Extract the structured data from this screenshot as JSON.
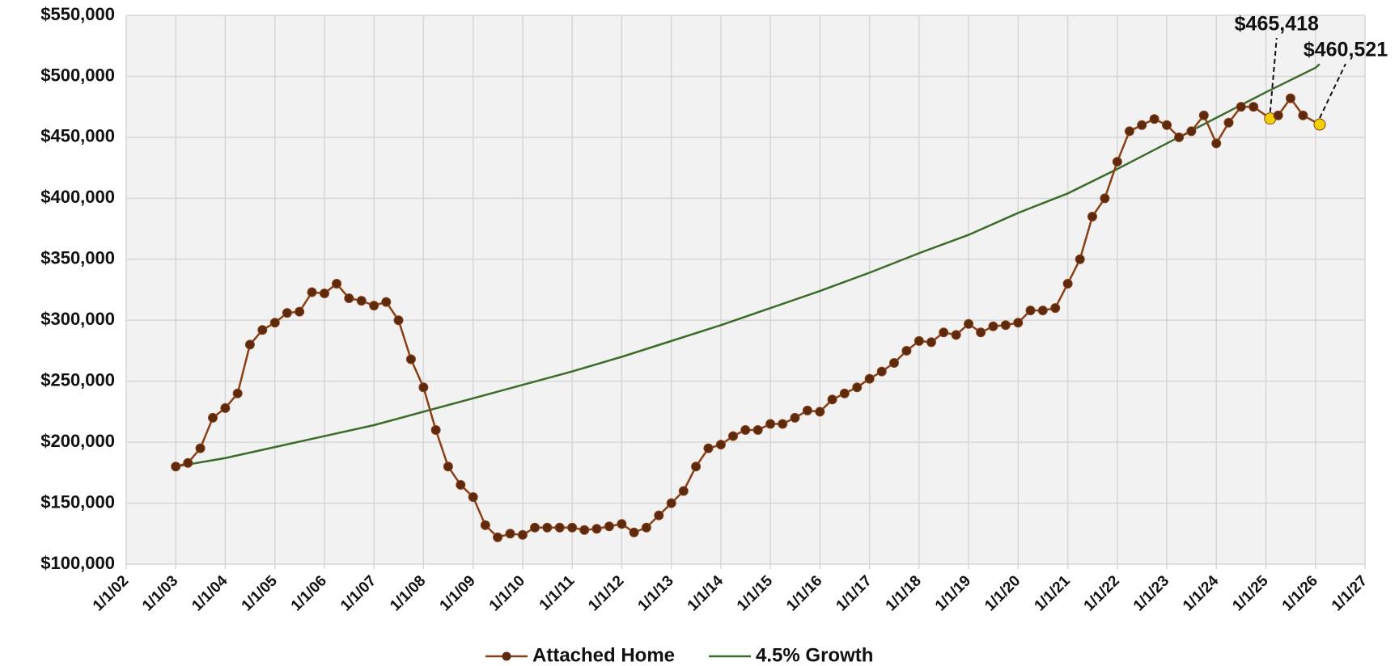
{
  "chart_data": {
    "type": "line",
    "xlim": [
      "2002-01-01",
      "2027-01-01"
    ],
    "xticks": [
      {
        "value": "2002-01-01",
        "label": "1/1/02"
      },
      {
        "value": "2003-01-01",
        "label": "1/1/03"
      },
      {
        "value": "2004-01-01",
        "label": "1/1/04"
      },
      {
        "value": "2005-01-01",
        "label": "1/1/05"
      },
      {
        "value": "2006-01-01",
        "label": "1/1/06"
      },
      {
        "value": "2007-01-01",
        "label": "1/1/07"
      },
      {
        "value": "2008-01-01",
        "label": "1/1/08"
      },
      {
        "value": "2009-01-01",
        "label": "1/1/09"
      },
      {
        "value": "2010-01-01",
        "label": "1/1/10"
      },
      {
        "value": "2011-01-01",
        "label": "1/1/11"
      },
      {
        "value": "2012-01-01",
        "label": "1/1/12"
      },
      {
        "value": "2013-01-01",
        "label": "1/1/13"
      },
      {
        "value": "2014-01-01",
        "label": "1/1/14"
      },
      {
        "value": "2015-01-01",
        "label": "1/1/15"
      },
      {
        "value": "2016-01-01",
        "label": "1/1/16"
      },
      {
        "value": "2017-01-01",
        "label": "1/1/17"
      },
      {
        "value": "2018-01-01",
        "label": "1/1/18"
      },
      {
        "value": "2019-01-01",
        "label": "1/1/19"
      },
      {
        "value": "2020-01-01",
        "label": "1/1/20"
      },
      {
        "value": "2021-01-01",
        "label": "1/1/21"
      },
      {
        "value": "2022-01-01",
        "label": "1/1/22"
      },
      {
        "value": "2023-01-01",
        "label": "1/1/23"
      },
      {
        "value": "2024-01-01",
        "label": "1/1/24"
      },
      {
        "value": "2025-01-01",
        "label": "1/1/25"
      },
      {
        "value": "2026-01-01",
        "label": "1/1/26"
      },
      {
        "value": "2027-01-01",
        "label": "1/1/27"
      }
    ],
    "ylim": [
      100000,
      550000
    ],
    "yticks": [
      {
        "value": 100000,
        "label": "$100,000"
      },
      {
        "value": 150000,
        "label": "$150,000"
      },
      {
        "value": 200000,
        "label": "$200,000"
      },
      {
        "value": 250000,
        "label": "$250,000"
      },
      {
        "value": 300000,
        "label": "$300,000"
      },
      {
        "value": 350000,
        "label": "$350,000"
      },
      {
        "value": 400000,
        "label": "$400,000"
      },
      {
        "value": 450000,
        "label": "$450,000"
      },
      {
        "value": 500000,
        "label": "$500,000"
      },
      {
        "value": 550000,
        "label": "$550,000"
      }
    ],
    "grid": true,
    "legend": "bottom",
    "series": [
      {
        "name": "Attached Home",
        "color": "#8b3f16",
        "marker_color": "#5c2a0e",
        "highlight_color": "#f2d000",
        "markers": true,
        "x": [
          "2003-01-01",
          "2003-04-01",
          "2003-07-01",
          "2003-10-01",
          "2004-01-01",
          "2004-04-01",
          "2004-07-01",
          "2004-10-01",
          "2005-01-01",
          "2005-04-01",
          "2005-07-01",
          "2005-10-01",
          "2006-01-01",
          "2006-04-01",
          "2006-07-01",
          "2006-10-01",
          "2007-01-01",
          "2007-04-01",
          "2007-07-01",
          "2007-10-01",
          "2008-01-01",
          "2008-04-01",
          "2008-07-01",
          "2008-10-01",
          "2009-01-01",
          "2009-04-01",
          "2009-07-01",
          "2009-10-01",
          "2010-01-01",
          "2010-04-01",
          "2010-07-01",
          "2010-10-01",
          "2011-01-01",
          "2011-04-01",
          "2011-07-01",
          "2011-10-01",
          "2012-01-01",
          "2012-04-01",
          "2012-07-01",
          "2012-10-01",
          "2013-01-01",
          "2013-04-01",
          "2013-07-01",
          "2013-10-01",
          "2014-01-01",
          "2014-04-01",
          "2014-07-01",
          "2014-10-01",
          "2015-01-01",
          "2015-04-01",
          "2015-07-01",
          "2015-10-01",
          "2016-01-01",
          "2016-04-01",
          "2016-07-01",
          "2016-10-01",
          "2017-01-01",
          "2017-04-01",
          "2017-07-01",
          "2017-10-01",
          "2018-01-01",
          "2018-04-01",
          "2018-07-01",
          "2018-10-01",
          "2019-01-01",
          "2019-04-01",
          "2019-07-01",
          "2019-10-01",
          "2020-01-01",
          "2020-04-01",
          "2020-07-01",
          "2020-10-01",
          "2021-01-01",
          "2021-04-01",
          "2021-07-01",
          "2021-10-01",
          "2022-01-01",
          "2022-04-01",
          "2022-07-01",
          "2022-10-01",
          "2023-01-01",
          "2023-04-01",
          "2023-07-01",
          "2023-10-01",
          "2024-01-01",
          "2024-04-01",
          "2024-07-01",
          "2024-10-01",
          "2025-02-01",
          "2025-04-01",
          "2025-07-01",
          "2025-10-01",
          "2026-02-01"
        ],
        "values": [
          180000,
          183000,
          195000,
          220000,
          228000,
          240000,
          280000,
          292000,
          298000,
          306000,
          307000,
          323000,
          322000,
          330000,
          318000,
          316000,
          312000,
          315000,
          300000,
          268000,
          245000,
          210000,
          180000,
          165000,
          155000,
          132000,
          122000,
          125000,
          124000,
          130000,
          130000,
          130000,
          130000,
          128000,
          129000,
          131000,
          133000,
          126000,
          130000,
          140000,
          150000,
          160000,
          180000,
          195000,
          198000,
          205000,
          210000,
          210000,
          215000,
          215000,
          220000,
          226000,
          225000,
          235000,
          240000,
          245000,
          252000,
          258000,
          265000,
          275000,
          283000,
          282000,
          290000,
          288000,
          297000,
          290000,
          295000,
          296000,
          298000,
          308000,
          308000,
          310000,
          330000,
          350000,
          385000,
          400000,
          430000,
          455000,
          460000,
          465000,
          460000,
          450000,
          455000,
          468000,
          445000,
          462000,
          475000,
          475000,
          465418,
          468000,
          482000,
          468000,
          460521
        ],
        "value_labels": [
          null,
          null,
          null,
          null,
          null,
          null,
          null,
          null,
          null,
          null,
          null,
          null,
          null,
          null,
          null,
          null,
          null,
          null,
          null,
          null,
          null,
          null,
          null,
          null,
          null,
          null,
          null,
          null,
          null,
          null,
          null,
          null,
          null,
          null,
          null,
          null,
          null,
          null,
          null,
          null,
          null,
          null,
          null,
          null,
          null,
          null,
          null,
          null,
          null,
          null,
          null,
          null,
          null,
          null,
          null,
          null,
          null,
          null,
          null,
          null,
          null,
          null,
          null,
          null,
          null,
          null,
          null,
          null,
          null,
          null,
          null,
          null,
          null,
          null,
          null,
          null,
          null,
          null,
          null,
          null,
          null,
          null,
          null,
          null,
          null,
          null,
          null,
          null,
          "$465,418",
          null,
          null,
          null,
          "$460,521"
        ]
      },
      {
        "name": "4.5% Growth",
        "color": "#3d6b2a",
        "markers": false,
        "x": [
          "2003-01-01",
          "2004-01-01",
          "2005-01-01",
          "2006-01-01",
          "2007-01-01",
          "2008-01-01",
          "2009-01-01",
          "2010-01-01",
          "2011-01-01",
          "2012-01-01",
          "2013-01-01",
          "2014-01-01",
          "2015-01-01",
          "2016-01-01",
          "2017-01-01",
          "2018-01-01",
          "2019-01-01",
          "2020-01-01",
          "2021-01-01",
          "2022-01-01",
          "2023-01-01",
          "2024-01-01",
          "2025-01-01",
          "2026-01-01",
          "2026-02-01"
        ],
        "values": [
          180000,
          187000,
          196000,
          205000,
          214000,
          225000,
          236000,
          247000,
          258000,
          270000,
          283000,
          296000,
          310000,
          324000,
          339000,
          355000,
          370000,
          388000,
          404000,
          424000,
          445000,
          466000,
          487000,
          507000,
          510000
        ]
      }
    ]
  }
}
